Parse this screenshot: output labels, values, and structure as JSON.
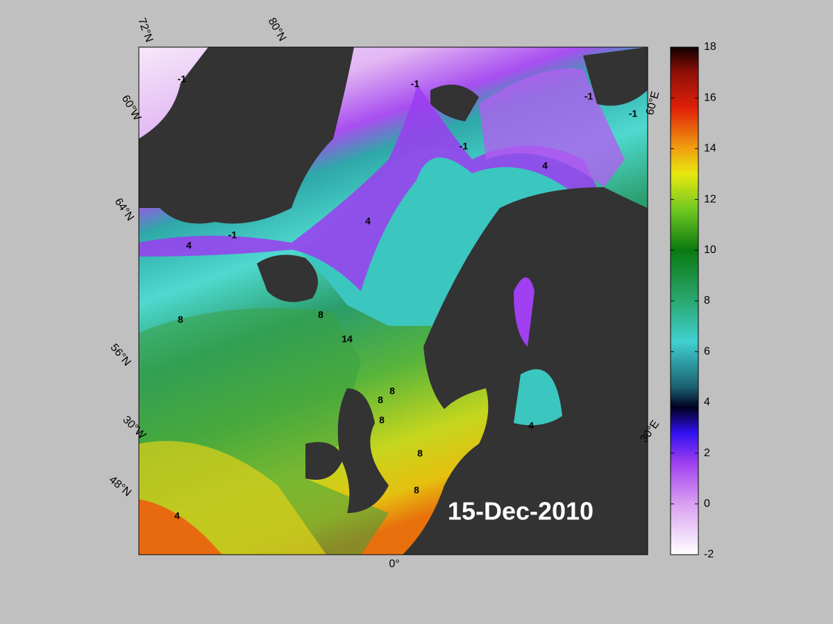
{
  "map": {
    "date": "15-Dec-2010",
    "graticule_labels": [
      "72°N",
      "80°N",
      "60°W",
      "64°N",
      "56°N",
      "30°W",
      "48°N",
      "0°",
      "30°E",
      "60°E"
    ],
    "contour_labels": [
      -1,
      -1,
      -1,
      -1,
      -1,
      4,
      4,
      -1,
      4,
      8,
      8,
      8,
      8,
      8,
      8,
      8,
      14,
      4,
      4
    ]
  },
  "colorbar": {
    "lim": [
      -2,
      18
    ],
    "ticks": [
      -2,
      0,
      2,
      4,
      6,
      8,
      10,
      12,
      14,
      16,
      18
    ]
  }
}
